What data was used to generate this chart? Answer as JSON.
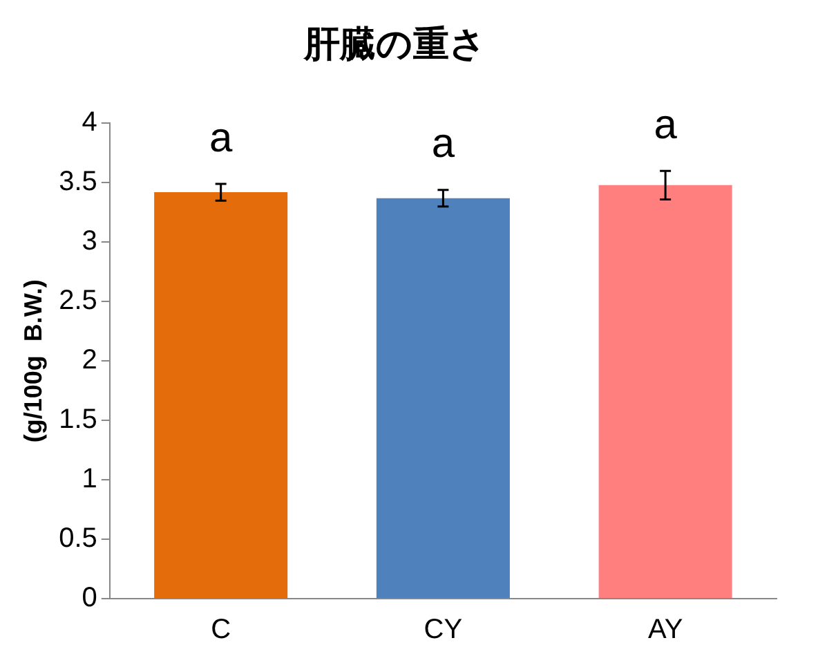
{
  "chart_data": {
    "type": "bar",
    "title": "肝臓の重さ",
    "ylabel": "(g/100g  B.W.)",
    "categories": [
      "C",
      "CY",
      "AY"
    ],
    "values": [
      3.42,
      3.37,
      3.48
    ],
    "colors": [
      "#e46c0a",
      "#4f81bd",
      "#ff7f7f"
    ],
    "errors": [
      0.07,
      0.07,
      0.12
    ],
    "ylim": [
      0,
      4
    ],
    "yticks": [
      0,
      0.5,
      1,
      1.5,
      2,
      2.5,
      3,
      3.5,
      4
    ],
    "grid": false,
    "legend": false,
    "annotations": [
      "a",
      "a",
      "a"
    ]
  }
}
